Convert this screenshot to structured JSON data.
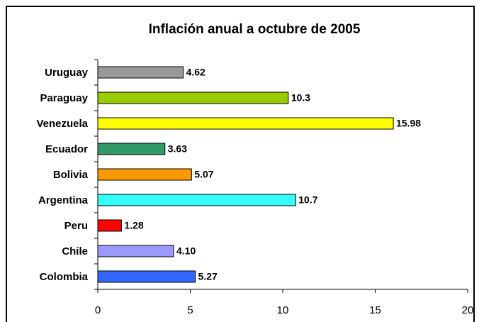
{
  "chart_data": {
    "type": "hbar",
    "title": "Inflación anual a octubre de 2005",
    "categories": [
      "Uruguay",
      "Paraguay",
      "Venezuela",
      "Ecuador",
      "Bolivia",
      "Argentina",
      "Peru",
      "Chile",
      "Colombia"
    ],
    "values": [
      4.62,
      10.3,
      15.98,
      3.63,
      5.07,
      10.7,
      1.28,
      4.1,
      5.27
    ],
    "value_labels": [
      "4.62",
      "10.3",
      "15.98",
      "3.63",
      "5.07",
      "10.7",
      "1.28",
      "4.10",
      "5.27"
    ],
    "colors": [
      "#999999",
      "#99cc00",
      "#ffff00",
      "#339966",
      "#ff9900",
      "#33ffff",
      "#ff0000",
      "#9999ff",
      "#3366ff"
    ],
    "xlim": [
      0,
      20
    ],
    "xticks": [
      0,
      5,
      10,
      15,
      20
    ]
  }
}
